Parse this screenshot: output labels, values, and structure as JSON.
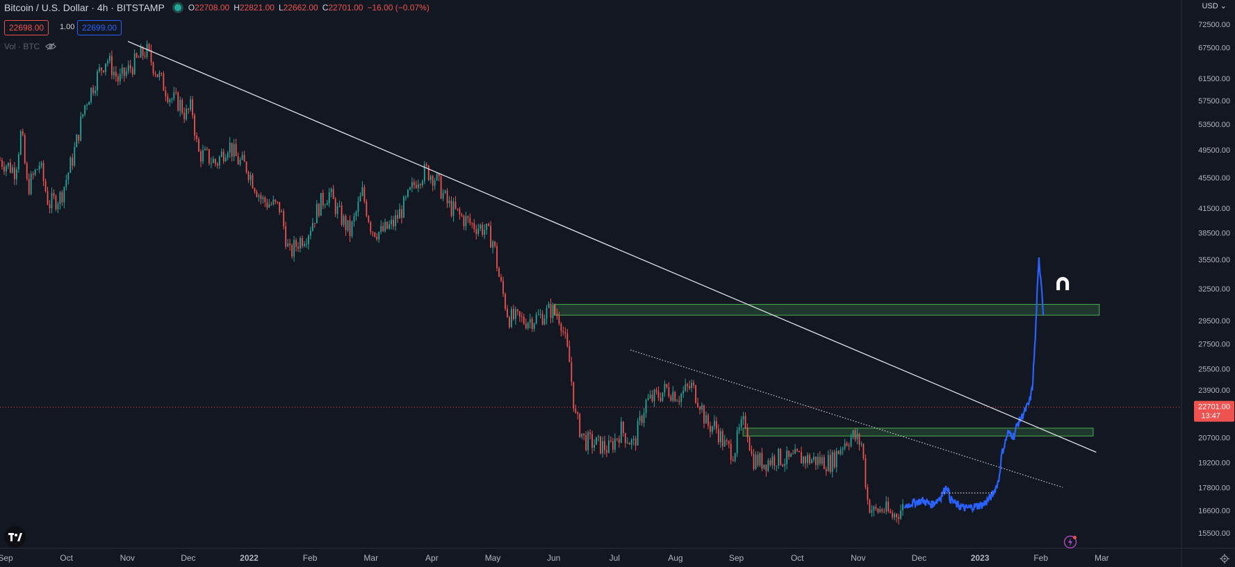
{
  "header": {
    "symbol": "Bitcoin / U.S. Dollar · 4h · BITSTAMP",
    "o_label": "O",
    "o_value": "22708.00",
    "h_label": "H",
    "h_value": "22821.00",
    "l_label": "L",
    "l_value": "22662.00",
    "c_label": "C",
    "c_value": "22701.00",
    "change": "−16.00 (−0.07%)"
  },
  "trade": {
    "sell": "22698.00",
    "qty": "1.00",
    "buy": "22699.00"
  },
  "volume_label": "Vol · BTC",
  "currency": "USD",
  "colors": {
    "background": "#131722",
    "up": "#26a69a",
    "down": "#ef5350",
    "projection": "#2962ff",
    "zone": "#4caf50",
    "trendline": "#e0e3eb"
  },
  "chart_data": {
    "type": "candlestick",
    "title": "Bitcoin / U.S. Dollar · 4h · BITSTAMP",
    "x_tick_labels": [
      "Sep",
      "Oct",
      "Nov",
      "Dec",
      "2022",
      "Feb",
      "Mar",
      "Apr",
      "May",
      "Jun",
      "Jul",
      "Aug",
      "Sep",
      "Oct",
      "Nov",
      "Dec",
      "2023",
      "Feb",
      "Mar"
    ],
    "x_tick_months": [
      0,
      1,
      2,
      3,
      4,
      5,
      6,
      7,
      8,
      9,
      10,
      11,
      12,
      13,
      14,
      15,
      16,
      17,
      18
    ],
    "y_tick_labels": [
      "72500.00",
      "67500.00",
      "61500.00",
      "57500.00",
      "53500.00",
      "49500.00",
      "45500.00",
      "41500.00",
      "38500.00",
      "35500.00",
      "32500.00",
      "29500.00",
      "27500.00",
      "25500.00",
      "23900.00",
      "20700.00",
      "19200.00",
      "17800.00",
      "16600.00",
      "15500.00"
    ],
    "y_scale": "log",
    "ylim": [
      14800,
      78000
    ],
    "xlim_months": [
      0,
      19.4
    ],
    "last_price": {
      "value": "22701.00",
      "countdown": "13:47"
    },
    "price_path": [
      {
        "m": 0.0,
        "p": 48000
      },
      {
        "m": 0.25,
        "p": 46500
      },
      {
        "m": 0.35,
        "p": 52500
      },
      {
        "m": 0.45,
        "p": 44000
      },
      {
        "m": 0.65,
        "p": 47500
      },
      {
        "m": 0.8,
        "p": 42000
      },
      {
        "m": 1.0,
        "p": 43000
      },
      {
        "m": 1.2,
        "p": 48500
      },
      {
        "m": 1.4,
        "p": 57000
      },
      {
        "m": 1.6,
        "p": 62000
      },
      {
        "m": 1.75,
        "p": 65500
      },
      {
        "m": 1.95,
        "p": 61000
      },
      {
        "m": 2.1,
        "p": 63000
      },
      {
        "m": 2.25,
        "p": 65000
      },
      {
        "m": 2.4,
        "p": 67000
      },
      {
        "m": 2.6,
        "p": 62000
      },
      {
        "m": 2.8,
        "p": 58000
      },
      {
        "m": 2.95,
        "p": 57000
      },
      {
        "m": 3.05,
        "p": 55000
      },
      {
        "m": 3.15,
        "p": 56500
      },
      {
        "m": 3.25,
        "p": 49000
      },
      {
        "m": 3.4,
        "p": 48500
      },
      {
        "m": 3.55,
        "p": 47500
      },
      {
        "m": 3.75,
        "p": 50500
      },
      {
        "m": 3.9,
        "p": 48000
      },
      {
        "m": 4.05,
        "p": 47000
      },
      {
        "m": 4.3,
        "p": 42500
      },
      {
        "m": 4.6,
        "p": 41500
      },
      {
        "m": 4.75,
        "p": 36000
      },
      {
        "m": 4.9,
        "p": 37500
      },
      {
        "m": 5.05,
        "p": 38500
      },
      {
        "m": 5.25,
        "p": 42000
      },
      {
        "m": 5.4,
        "p": 43500
      },
      {
        "m": 5.55,
        "p": 41000
      },
      {
        "m": 5.75,
        "p": 38500
      },
      {
        "m": 5.95,
        "p": 43500
      },
      {
        "m": 6.1,
        "p": 39000
      },
      {
        "m": 6.25,
        "p": 38500
      },
      {
        "m": 6.45,
        "p": 39500
      },
      {
        "m": 6.65,
        "p": 42000
      },
      {
        "m": 6.85,
        "p": 45500
      },
      {
        "m": 7.0,
        "p": 46500
      },
      {
        "m": 7.15,
        "p": 45500
      },
      {
        "m": 7.35,
        "p": 42000
      },
      {
        "m": 7.55,
        "p": 40500
      },
      {
        "m": 7.75,
        "p": 39500
      },
      {
        "m": 7.95,
        "p": 39000
      },
      {
        "m": 8.1,
        "p": 37500
      },
      {
        "m": 8.2,
        "p": 33500
      },
      {
        "m": 8.35,
        "p": 29800
      },
      {
        "m": 8.6,
        "p": 29500
      },
      {
        "m": 8.85,
        "p": 29800
      },
      {
        "m": 9.05,
        "p": 30500
      },
      {
        "m": 9.2,
        "p": 29800
      },
      {
        "m": 9.35,
        "p": 26000
      },
      {
        "m": 9.45,
        "p": 22000
      },
      {
        "m": 9.6,
        "p": 20500
      },
      {
        "m": 9.8,
        "p": 20300
      },
      {
        "m": 10.0,
        "p": 20000
      },
      {
        "m": 10.2,
        "p": 21200
      },
      {
        "m": 10.4,
        "p": 20200
      },
      {
        "m": 10.6,
        "p": 23000
      },
      {
        "m": 10.8,
        "p": 23500
      },
      {
        "m": 10.95,
        "p": 24000
      },
      {
        "m": 11.15,
        "p": 23500
      },
      {
        "m": 11.35,
        "p": 24200
      },
      {
        "m": 11.5,
        "p": 23000
      },
      {
        "m": 11.6,
        "p": 21500
      },
      {
        "m": 11.75,
        "p": 21400
      },
      {
        "m": 11.9,
        "p": 20200
      },
      {
        "m": 12.05,
        "p": 19800
      },
      {
        "m": 12.15,
        "p": 21200
      },
      {
        "m": 12.25,
        "p": 21800
      },
      {
        "m": 12.35,
        "p": 19400
      },
      {
        "m": 12.55,
        "p": 19200
      },
      {
        "m": 12.75,
        "p": 19500
      },
      {
        "m": 12.95,
        "p": 19300
      },
      {
        "m": 13.1,
        "p": 19500
      },
      {
        "m": 13.25,
        "p": 19400
      },
      {
        "m": 13.45,
        "p": 19300
      },
      {
        "m": 13.65,
        "p": 19200
      },
      {
        "m": 13.85,
        "p": 20400
      },
      {
        "m": 14.0,
        "p": 20800
      },
      {
        "m": 14.15,
        "p": 20300
      },
      {
        "m": 14.25,
        "p": 17000
      },
      {
        "m": 14.35,
        "p": 16500
      },
      {
        "m": 14.5,
        "p": 16700
      },
      {
        "m": 14.65,
        "p": 16300
      },
      {
        "m": 14.85,
        "p": 16800
      }
    ],
    "projection_path": [
      {
        "m": 14.85,
        "p": 16800
      },
      {
        "m": 15.0,
        "p": 17000
      },
      {
        "m": 15.15,
        "p": 17100
      },
      {
        "m": 15.3,
        "p": 16900
      },
      {
        "m": 15.45,
        "p": 17300
      },
      {
        "m": 15.55,
        "p": 17900
      },
      {
        "m": 15.6,
        "p": 17200
      },
      {
        "m": 15.7,
        "p": 16900
      },
      {
        "m": 15.85,
        "p": 16700
      },
      {
        "m": 16.0,
        "p": 16800
      },
      {
        "m": 16.15,
        "p": 16900
      },
      {
        "m": 16.3,
        "p": 17400
      },
      {
        "m": 16.4,
        "p": 18200
      },
      {
        "m": 16.45,
        "p": 19700
      },
      {
        "m": 16.55,
        "p": 21000
      },
      {
        "m": 16.65,
        "p": 20800
      },
      {
        "m": 16.7,
        "p": 21500
      },
      {
        "m": 16.8,
        "p": 22200
      },
      {
        "m": 16.9,
        "p": 23000
      },
      {
        "m": 16.95,
        "p": 24000
      },
      {
        "m": 17.0,
        "p": 28000
      },
      {
        "m": 17.03,
        "p": 32000
      },
      {
        "m": 17.06,
        "p": 35500
      },
      {
        "m": 17.1,
        "p": 33000
      },
      {
        "m": 17.14,
        "p": 29500
      }
    ],
    "trendlines": [
      {
        "style": "solid",
        "from": {
          "m": 2.1,
          "p": 68800
        },
        "to": {
          "m": 18.0,
          "p": 19800
        }
      },
      {
        "style": "dotted",
        "from": {
          "m": 10.35,
          "p": 27000
        },
        "to": {
          "m": 17.45,
          "p": 17800
        }
      },
      {
        "style": "dotted",
        "from": {
          "m": 15.45,
          "p": 17500
        },
        "to": {
          "m": 16.3,
          "p": 17500
        }
      }
    ],
    "zones": [
      {
        "from_m": 9.1,
        "to_m": 18.05,
        "top": 31000,
        "bottom": 30000
      },
      {
        "from_m": 12.2,
        "to_m": 17.95,
        "top": 21300,
        "bottom": 20800
      }
    ]
  }
}
